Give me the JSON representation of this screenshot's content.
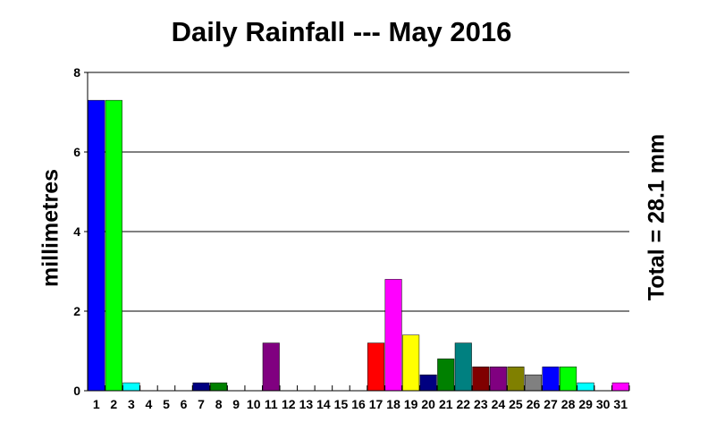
{
  "chart_data": {
    "type": "bar",
    "title": "Daily Rainfall --- May 2016",
    "ylabel": "millimetres",
    "annotation": "Total = 28.1 mm",
    "ylim": [
      0,
      8
    ],
    "yticks": [
      0,
      2,
      4,
      6,
      8
    ],
    "grid": true,
    "categories": [
      "1",
      "2",
      "3",
      "4",
      "5",
      "6",
      "7",
      "8",
      "9",
      "10",
      "11",
      "12",
      "13",
      "14",
      "15",
      "16",
      "17",
      "18",
      "19",
      "20",
      "21",
      "22",
      "23",
      "24",
      "25",
      "26",
      "27",
      "28",
      "29",
      "30",
      "31"
    ],
    "values": [
      7.3,
      7.3,
      0.2,
      0,
      0,
      0,
      0.2,
      0.2,
      0,
      0,
      1.2,
      0,
      0,
      0,
      0,
      0,
      1.2,
      2.8,
      1.4,
      0.4,
      0.8,
      1.2,
      0.6,
      0.6,
      0.6,
      0.4,
      0.6,
      0.6,
      0.2,
      0,
      0.2
    ],
    "colors": [
      "#0000ff",
      "#00ff00",
      "#00ffff",
      "#0000ff",
      "#00ff00",
      "#00ffff",
      "#000080",
      "#008000",
      "#008080",
      "#800000",
      "#800080",
      "#808000",
      "#808080",
      "#0000ff",
      "#00ff00",
      "#00ffff",
      "#ff0000",
      "#ff00ff",
      "#ffff00",
      "#000080",
      "#008000",
      "#008080",
      "#800000",
      "#800080",
      "#808000",
      "#808080",
      "#0000ff",
      "#00ff00",
      "#00ffff",
      "#ff0000",
      "#ff00ff"
    ]
  }
}
